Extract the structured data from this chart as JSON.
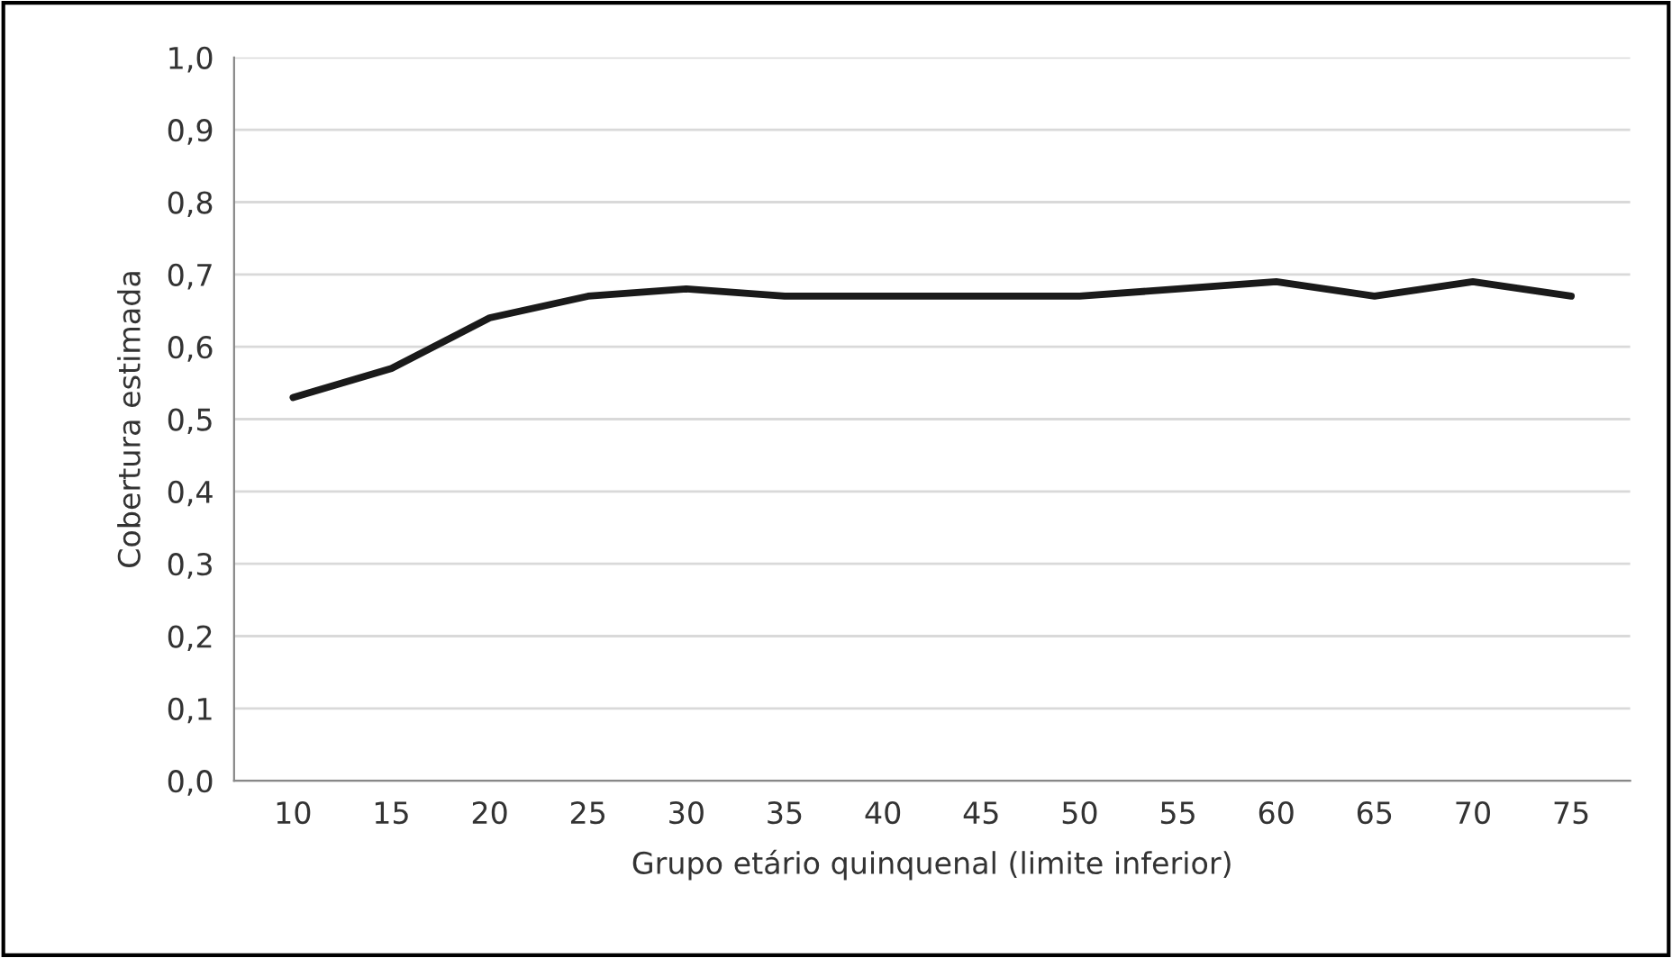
{
  "chart_data": {
    "type": "line",
    "xlabel": "Grupo etário quinquenal (limite inferior)",
    "ylabel": "Cobertura estimada",
    "categories": [
      "10",
      "15",
      "20",
      "25",
      "30",
      "35",
      "40",
      "45",
      "50",
      "55",
      "60",
      "65",
      "70",
      "75"
    ],
    "series": [
      {
        "color": "#1a1a1a",
        "values": [
          0.53,
          0.57,
          0.64,
          0.67,
          0.68,
          0.67,
          0.67,
          0.67,
          0.67,
          0.68,
          0.69,
          0.67,
          0.69,
          0.67
        ]
      }
    ],
    "ylim": [
      0,
      1
    ],
    "yticks": [
      {
        "value": 0,
        "label": "0,0"
      },
      {
        "value": 0.1,
        "label": "0,1"
      },
      {
        "value": 0.2,
        "label": "0,2"
      },
      {
        "value": 0.3,
        "label": "0,3"
      },
      {
        "value": 0.4,
        "label": "0,4"
      },
      {
        "value": 0.5,
        "label": "0,5"
      },
      {
        "value": 0.6,
        "label": "0,6"
      },
      {
        "value": 0.7,
        "label": "0,7"
      },
      {
        "value": 0.8,
        "label": "0,8"
      },
      {
        "value": 0.9,
        "label": "0,9"
      },
      {
        "value": 1,
        "label": "1,0"
      }
    ],
    "grid": "y",
    "line_style": "solid",
    "marker": "none"
  }
}
